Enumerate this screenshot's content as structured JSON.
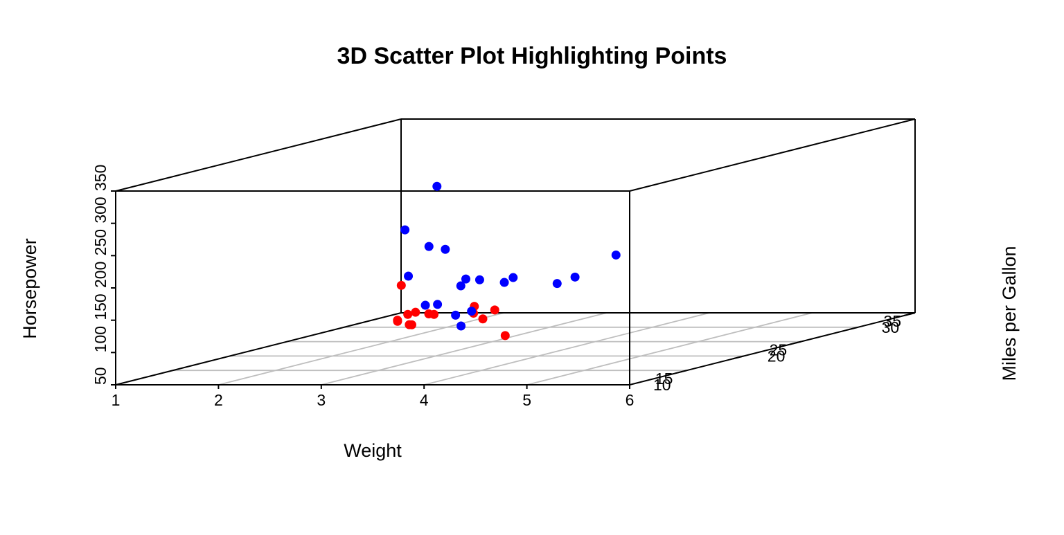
{
  "chart_data": {
    "type": "scatter",
    "title": "3D Scatter Plot Highlighting Points",
    "xlabel": "Weight",
    "ylabel": "Miles per Gallon",
    "zlabel": "Horsepower",
    "xlim": [
      1,
      6
    ],
    "ylim": [
      10,
      35
    ],
    "zlim": [
      50,
      350
    ],
    "x_ticks": [
      1,
      2,
      3,
      4,
      5,
      6
    ],
    "y_ticks": [
      10,
      15,
      20,
      25,
      30,
      35
    ],
    "z_ticks": [
      50,
      100,
      150,
      200,
      250,
      300,
      350
    ],
    "grid": true,
    "legend": "none",
    "colors": {
      "highlight": "#ff0000",
      "other": "#0000ff"
    },
    "series": [
      {
        "color": "#ff0000",
        "points": [
          {
            "x": 2.62,
            "y": 21.0,
            "z": 110
          },
          {
            "x": 2.875,
            "y": 21.0,
            "z": 110
          },
          {
            "x": 2.32,
            "y": 22.8,
            "z": 93
          },
          {
            "x": 3.215,
            "y": 21.4,
            "z": 110
          },
          {
            "x": 3.19,
            "y": 24.4,
            "z": 62
          },
          {
            "x": 3.15,
            "y": 22.8,
            "z": 95
          },
          {
            "x": 2.2,
            "y": 32.4,
            "z": 66
          },
          {
            "x": 1.615,
            "y": 30.4,
            "z": 52
          },
          {
            "x": 1.835,
            "y": 33.9,
            "z": 65
          },
          {
            "x": 2.465,
            "y": 21.5,
            "z": 97
          },
          {
            "x": 1.935,
            "y": 27.3,
            "z": 66
          },
          {
            "x": 2.14,
            "y": 26.0,
            "z": 91
          },
          {
            "x": 1.513,
            "y": 30.4,
            "z": 113
          },
          {
            "x": 2.78,
            "y": 21.4,
            "z": 109
          }
        ]
      },
      {
        "color": "#0000ff",
        "points": [
          {
            "x": 3.44,
            "y": 18.7,
            "z": 175
          },
          {
            "x": 3.46,
            "y": 18.1,
            "z": 105
          },
          {
            "x": 3.57,
            "y": 14.3,
            "z": 245
          },
          {
            "x": 3.44,
            "y": 19.2,
            "z": 123
          },
          {
            "x": 3.44,
            "y": 17.8,
            "z": 123
          },
          {
            "x": 4.07,
            "y": 16.4,
            "z": 180
          },
          {
            "x": 3.73,
            "y": 17.3,
            "z": 180
          },
          {
            "x": 3.78,
            "y": 15.2,
            "z": 180
          },
          {
            "x": 5.25,
            "y": 10.4,
            "z": 205
          },
          {
            "x": 5.424,
            "y": 10.4,
            "z": 215
          },
          {
            "x": 5.345,
            "y": 14.7,
            "z": 230
          },
          {
            "x": 3.52,
            "y": 15.5,
            "z": 150
          },
          {
            "x": 3.435,
            "y": 15.2,
            "z": 150
          },
          {
            "x": 3.84,
            "y": 13.3,
            "z": 245
          },
          {
            "x": 3.845,
            "y": 19.2,
            "z": 175
          },
          {
            "x": 3.17,
            "y": 15.8,
            "z": 264
          },
          {
            "x": 2.77,
            "y": 19.7,
            "z": 175
          },
          {
            "x": 3.57,
            "y": 15.0,
            "z": 335
          }
        ]
      }
    ]
  }
}
